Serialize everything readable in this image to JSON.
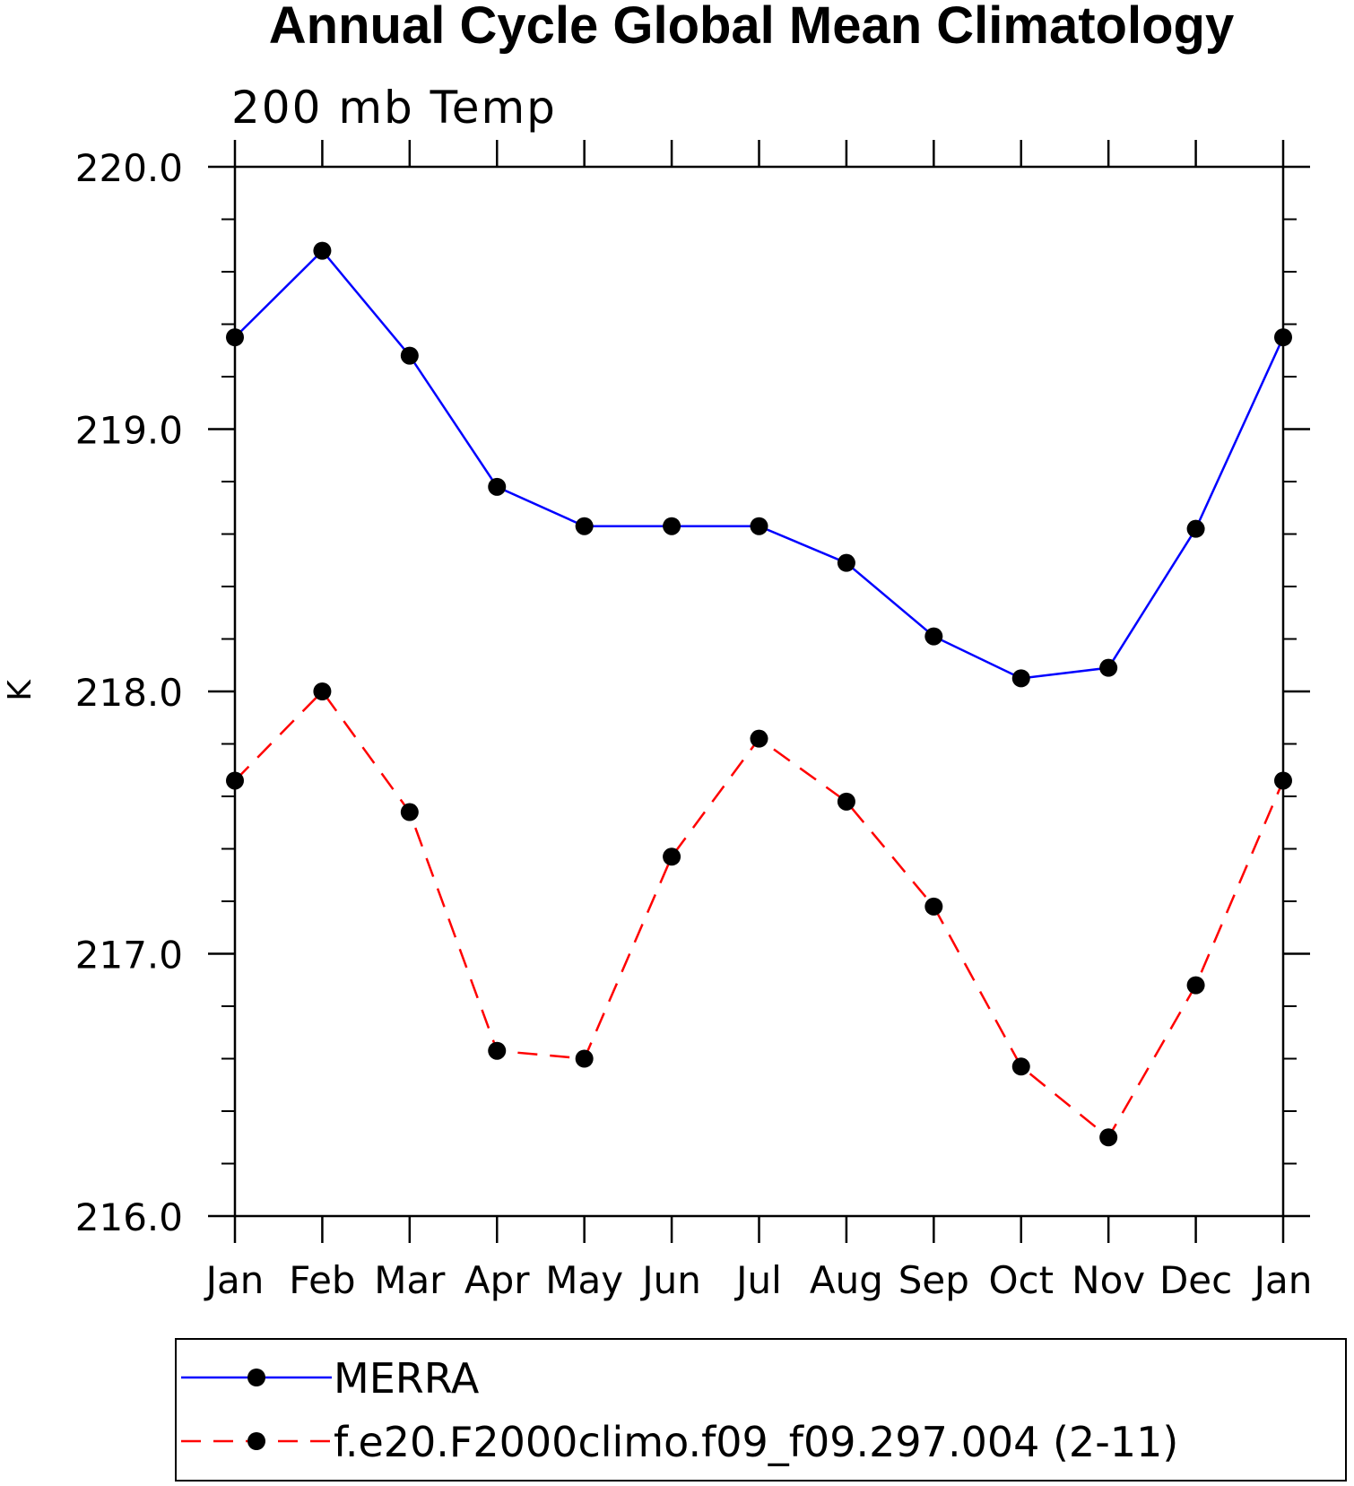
{
  "chart_data": {
    "type": "line",
    "title": "Annual Cycle Global Mean Climatology",
    "subtitle": "200 mb Temp",
    "xlabel": "",
    "ylabel": "K",
    "categories": [
      "Jan",
      "Feb",
      "Mar",
      "Apr",
      "May",
      "Jun",
      "Jul",
      "Aug",
      "Sep",
      "Oct",
      "Nov",
      "Dec",
      "Jan"
    ],
    "ylim": [
      216.0,
      220.0
    ],
    "yticks": [
      "216.0",
      "217.0",
      "218.0",
      "219.0",
      "220.0"
    ],
    "yticks_values": [
      216.0,
      217.0,
      218.0,
      219.0,
      220.0
    ],
    "series": [
      {
        "name": "MERRA",
        "color": "#0000ff",
        "style": "solid",
        "marker": "filled-circle",
        "values": [
          219.35,
          219.68,
          219.28,
          218.78,
          218.63,
          218.63,
          218.63,
          218.49,
          218.21,
          218.05,
          218.09,
          218.62,
          219.35
        ]
      },
      {
        "name": "f.e20.F2000climo.f09_f09.297.004 (2-11)",
        "color": "#ff0000",
        "style": "dashed",
        "marker": "filled-circle",
        "values": [
          217.66,
          218.0,
          217.54,
          216.63,
          216.6,
          217.37,
          217.82,
          217.58,
          217.18,
          216.57,
          216.3,
          216.88,
          217.66
        ]
      }
    ],
    "grid": false,
    "legend": "bottom"
  }
}
